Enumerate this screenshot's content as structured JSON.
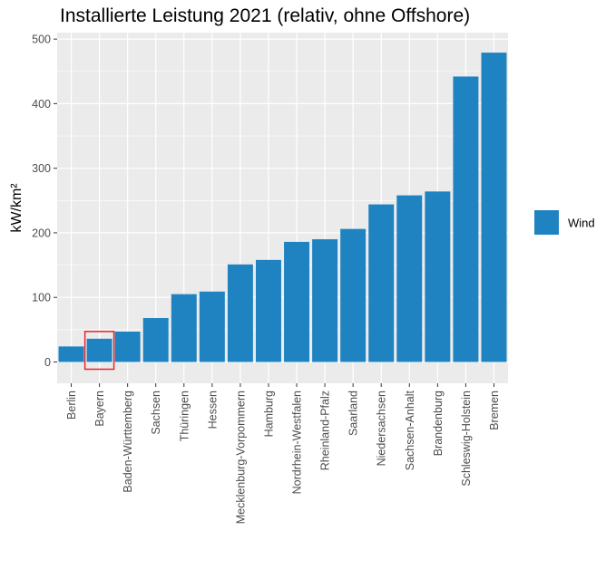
{
  "chart_data": {
    "type": "bar",
    "title": "Installierte Leistung 2021 (relativ, ohne Offshore)",
    "xlabel": "",
    "ylabel": "kW/km²",
    "categories": [
      "Berlin",
      "Bayern",
      "Baden-Württemberg",
      "Sachsen",
      "Thüringen",
      "Hessen",
      "Mecklenburg-Vorpommern",
      "Hamburg",
      "Nordrhein-Westfalen",
      "Rheinland-Pfalz",
      "Saarland",
      "Niedersachsen",
      "Sachsen-Anhalt",
      "Brandenburg",
      "Schleswig-Holstein",
      "Bremen"
    ],
    "series": [
      {
        "name": "Wind",
        "color": "#1f83c1",
        "values": [
          24,
          36,
          47,
          68,
          105,
          109,
          151,
          158,
          186,
          190,
          206,
          244,
          258,
          264,
          442,
          479
        ]
      }
    ],
    "ylim": [
      -33,
      510
    ],
    "yticks": [
      0,
      100,
      200,
      300,
      400,
      500
    ],
    "grid": true,
    "legend_position": "right",
    "highlight": {
      "category": "Bayern",
      "color": "#e8242b"
    },
    "panel_background": "#ebebeb"
  }
}
